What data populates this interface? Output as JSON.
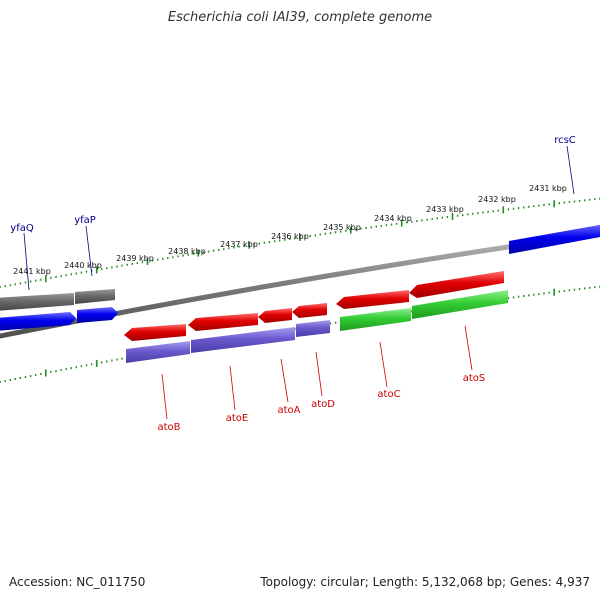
{
  "title": "Escherichia coli IAI39, complete genome",
  "footer": {
    "accession": "Accession: NC_011750",
    "summary": "Topology: circular; Length: 5,132,068 bp; Genes: 4,937"
  },
  "colors": {
    "backbone": "#808080",
    "tick": "#228B22",
    "gene_forward_label": "#00008B",
    "gene_reverse_label": "#CC0000",
    "feature_red": "#E00000",
    "feature_blue": "#0000EE",
    "feature_gray": "#666666",
    "feature_purple": "#6A5ACD",
    "feature_green": "#33CC33"
  },
  "kbp_labels": [
    {
      "text": "2441 kbp"
    },
    {
      "text": "2440 kbp"
    },
    {
      "text": "2439 kbp"
    },
    {
      "text": "2438 kbp"
    },
    {
      "text": "2437 kbp"
    },
    {
      "text": "2436 kbp"
    },
    {
      "text": "2435 kbp"
    },
    {
      "text": "2434 kbp"
    },
    {
      "text": "2433 kbp"
    },
    {
      "text": "2432 kbp"
    },
    {
      "text": "2431 kbp"
    }
  ],
  "genes": [
    {
      "label": "yfaQ",
      "strand": "forward"
    },
    {
      "label": "yfaP",
      "strand": "forward"
    },
    {
      "label": "rcsC",
      "strand": "forward"
    },
    {
      "label": "atoB",
      "strand": "reverse"
    },
    {
      "label": "atoE",
      "strand": "reverse"
    },
    {
      "label": "atoA",
      "strand": "reverse"
    },
    {
      "label": "atoD",
      "strand": "reverse"
    },
    {
      "label": "atoC",
      "strand": "reverse"
    },
    {
      "label": "atoS",
      "strand": "reverse"
    }
  ]
}
